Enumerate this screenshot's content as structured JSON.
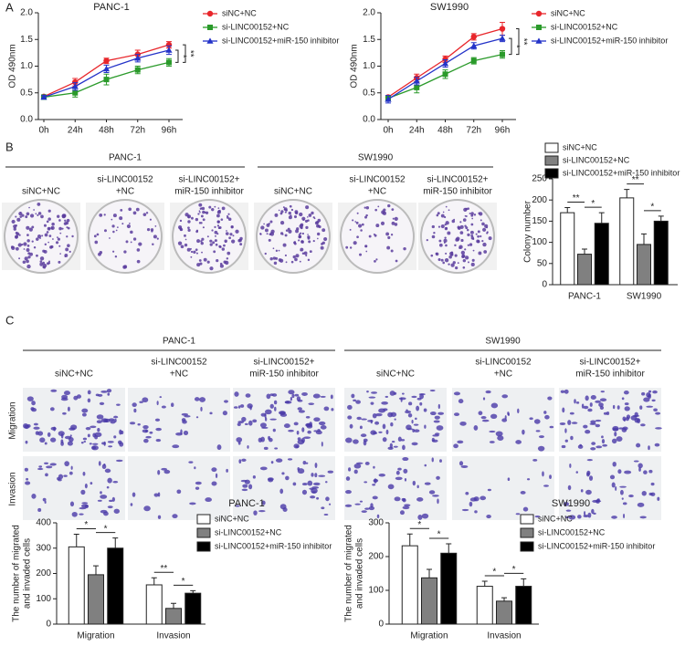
{
  "panel_labels": [
    "A",
    "B",
    "C"
  ],
  "chart_data": [
    {
      "type": "line",
      "title": "PANC-1",
      "y_label": "OD 490nm",
      "categories": [
        "0h",
        "24h",
        "48h",
        "72h",
        "96h"
      ],
      "ylim": [
        0,
        2
      ],
      "yticks": [
        {
          "value": 0,
          "label": "0.0"
        },
        0.5,
        {
          "value": 1,
          "label": "1.0"
        },
        1.5,
        {
          "value": 2,
          "label": "2.0"
        }
      ],
      "series": [
        {
          "name": "siNC+NC",
          "color": "#e8262b",
          "marker": "circle",
          "values": [
            0.43,
            0.7,
            1.1,
            1.22,
            1.4
          ],
          "errors": [
            0.03,
            0.07,
            0.05,
            0.08,
            0.06
          ]
        },
        {
          "name": "si-LINC00152+NC",
          "color": "#2a9a2a",
          "marker": "square",
          "values": [
            0.42,
            0.5,
            0.75,
            0.93,
            1.07
          ],
          "errors": [
            0.03,
            0.08,
            0.1,
            0.07,
            0.07
          ]
        },
        {
          "name": "si-LINC00152+miR-150 inhibitor",
          "color": "#2433c8",
          "marker": "triangle",
          "values": [
            0.42,
            0.62,
            0.95,
            1.15,
            1.3
          ],
          "errors": [
            0.03,
            0.07,
            0.07,
            0.07,
            0.08
          ]
        }
      ],
      "annotations": [
        "*",
        "**"
      ]
    },
    {
      "type": "line",
      "title": "SW1990",
      "y_label": "OD 490nm",
      "categories": [
        "0h",
        "24h",
        "48h",
        "72h",
        "96h"
      ],
      "ylim": [
        0,
        2
      ],
      "yticks": [
        {
          "value": 0,
          "label": "0.0"
        },
        0.5,
        {
          "value": 1,
          "label": "1.0"
        },
        1.5,
        {
          "value": 2,
          "label": "2.0"
        }
      ],
      "series": [
        {
          "name": "siNC+NC",
          "color": "#e8262b",
          "marker": "circle",
          "values": [
            0.42,
            0.78,
            1.13,
            1.55,
            1.7
          ],
          "errors": [
            0.03,
            0.07,
            0.06,
            0.06,
            0.12
          ]
        },
        {
          "name": "si-LINC00152+NC",
          "color": "#2a9a2a",
          "marker": "square",
          "values": [
            0.4,
            0.6,
            0.85,
            1.1,
            1.22
          ],
          "errors": [
            0.03,
            0.1,
            0.08,
            0.06,
            0.07
          ]
        },
        {
          "name": "si-LINC00152+miR-150 inhibitor",
          "color": "#2433c8",
          "marker": "triangle",
          "values": [
            0.38,
            0.72,
            1.05,
            1.38,
            1.52
          ],
          "errors": [
            0.07,
            0.07,
            0.07,
            0.06,
            0.06
          ]
        }
      ],
      "annotations": [
        "*",
        "**"
      ]
    },
    {
      "type": "bar",
      "y_label": [
        "Colony number"
      ],
      "categories": [
        "PANC-1",
        "SW1990"
      ],
      "ylim": [
        0,
        250
      ],
      "yticks": [
        0,
        50,
        100,
        150,
        200,
        250
      ],
      "series": [
        {
          "name": "siNC+NC",
          "color": "#ffffff",
          "values": [
            170,
            205
          ],
          "errors": [
            12,
            20
          ]
        },
        {
          "name": "si-LINC00152+NC",
          "color": "#808080",
          "values": [
            72,
            95
          ],
          "errors": [
            12,
            25
          ]
        },
        {
          "name": "si-LINC00152+miR-150 inhibitor",
          "color": "#000000",
          "values": [
            145,
            150
          ],
          "errors": [
            25,
            12
          ]
        }
      ],
      "annotations": [
        "**",
        "*",
        "**",
        "*"
      ]
    },
    {
      "type": "bar",
      "title": "PANC-1",
      "y_label": [
        "The number of migrated",
        "and invaded cells"
      ],
      "categories": [
        "Migration",
        "Invasion"
      ],
      "ylim": [
        0,
        400
      ],
      "yticks": [
        0,
        100,
        200,
        300,
        400
      ],
      "series": [
        {
          "name": "siNC+NC",
          "color": "#ffffff",
          "values": [
            305,
            155
          ],
          "errors": [
            50,
            28
          ]
        },
        {
          "name": "si-LINC00152+NC",
          "color": "#808080",
          "values": [
            195,
            62
          ],
          "errors": [
            35,
            20
          ]
        },
        {
          "name": "si-LINC00152+miR-150 inhibitor",
          "color": "#000000",
          "values": [
            300,
            122
          ],
          "errors": [
            40,
            10
          ]
        }
      ],
      "annotations": [
        "*",
        "*",
        "**",
        "*"
      ]
    },
    {
      "type": "bar",
      "title": "SW1990",
      "y_label": [
        "The number of migrated",
        "and invaded cells"
      ],
      "categories": [
        "Migration",
        "Invasion"
      ],
      "ylim": [
        0,
        300
      ],
      "yticks": [
        0,
        100,
        200,
        300
      ],
      "series": [
        {
          "name": "siNC+NC",
          "color": "#ffffff",
          "values": [
            232,
            112
          ],
          "errors": [
            35,
            15
          ]
        },
        {
          "name": "si-LINC00152+NC",
          "color": "#808080",
          "values": [
            137,
            68
          ],
          "errors": [
            25,
            10
          ]
        },
        {
          "name": "si-LINC00152+miR-150 inhibitor",
          "color": "#000000",
          "values": [
            210,
            112
          ],
          "errors": [
            28,
            22
          ]
        }
      ],
      "annotations": [
        "*",
        "*",
        "*",
        "*"
      ]
    }
  ],
  "colony_images": {
    "groups": [
      {
        "title": "PANC-1",
        "labels": [
          [
            "siNC+NC"
          ],
          [
            "si-LINC00152",
            "+NC"
          ],
          [
            "si-LINC00152+",
            "miR-150 inhibitor"
          ]
        ]
      },
      {
        "title": "SW1990",
        "labels": [
          [
            "siNC+NC"
          ],
          [
            "si-LINC00152",
            "+NC"
          ],
          [
            "si-LINC00152+",
            "miR-150 inhibitor"
          ]
        ]
      }
    ]
  },
  "transwell_images": {
    "rows": [
      "Migration",
      "Invasion"
    ],
    "groups": [
      {
        "title": "PANC-1",
        "labels": [
          [
            "siNC+NC"
          ],
          [
            "si-LINC00152",
            "+NC"
          ],
          [
            "si-LINC00152+",
            "miR-150 inhibitor"
          ]
        ]
      },
      {
        "title": "SW1990",
        "labels": [
          [
            "siNC+NC"
          ],
          [
            "si-LINC00152",
            "+NC"
          ],
          [
            "si-LINC00152+",
            "miR-150 inhibitor"
          ]
        ]
      }
    ]
  }
}
